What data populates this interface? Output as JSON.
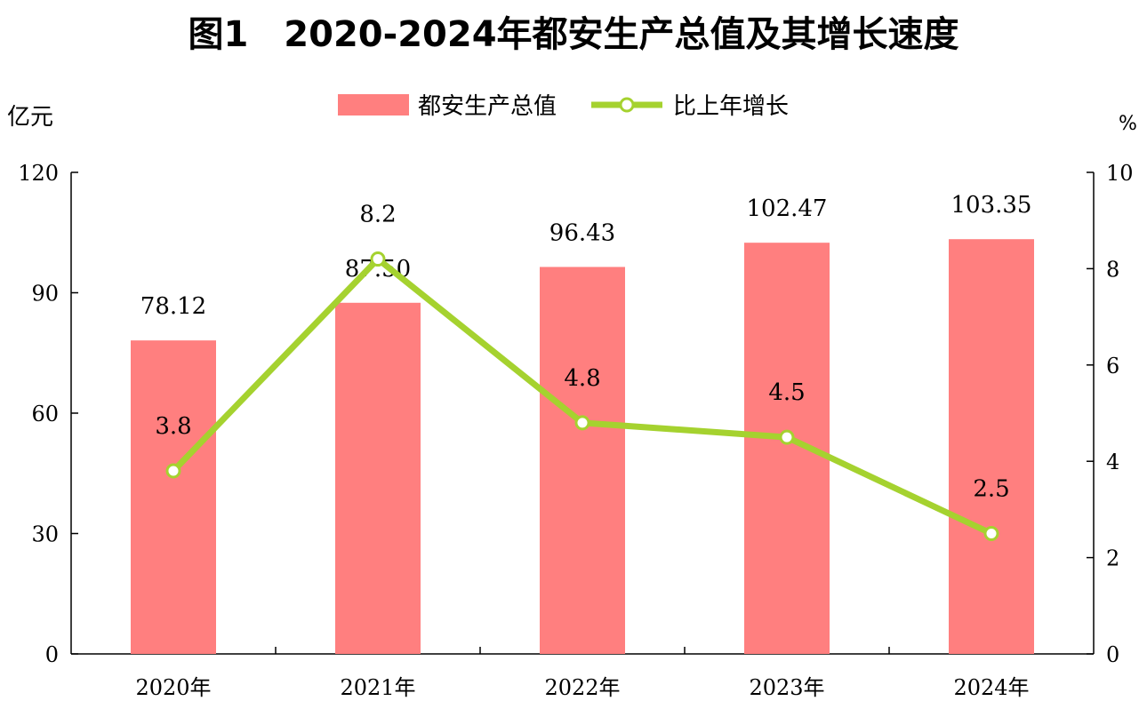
{
  "chart_data": {
    "type": "bar+line",
    "title": "图1　2020-2024年都安生产总值及其增长速度",
    "categories": [
      "2020年",
      "2021年",
      "2022年",
      "2023年",
      "2024年"
    ],
    "series": [
      {
        "name": "都安生产总值",
        "type": "bar",
        "axis": "left",
        "color": "#ff7f7f",
        "values": [
          78.12,
          87.5,
          96.43,
          102.47,
          103.35
        ],
        "labels": [
          "78.12",
          "87.50",
          "96.43",
          "102.47",
          "103.35"
        ]
      },
      {
        "name": "比上年增长",
        "type": "line",
        "axis": "right",
        "color": "#a5d22f",
        "values": [
          3.8,
          8.2,
          4.8,
          4.5,
          2.5
        ],
        "labels": [
          "3.8",
          "8.2",
          "4.8",
          "4.5",
          "2.5"
        ]
      }
    ],
    "ylabel": "亿元",
    "ylim": [
      0,
      120
    ],
    "yticks": [
      "0",
      "30",
      "60",
      "90",
      "120"
    ],
    "y2label": "%",
    "y2lim": [
      0,
      10
    ],
    "y2ticks": [
      "0",
      "2",
      "4",
      "6",
      "8",
      "10"
    ],
    "legend": "top-center",
    "grid": false
  }
}
